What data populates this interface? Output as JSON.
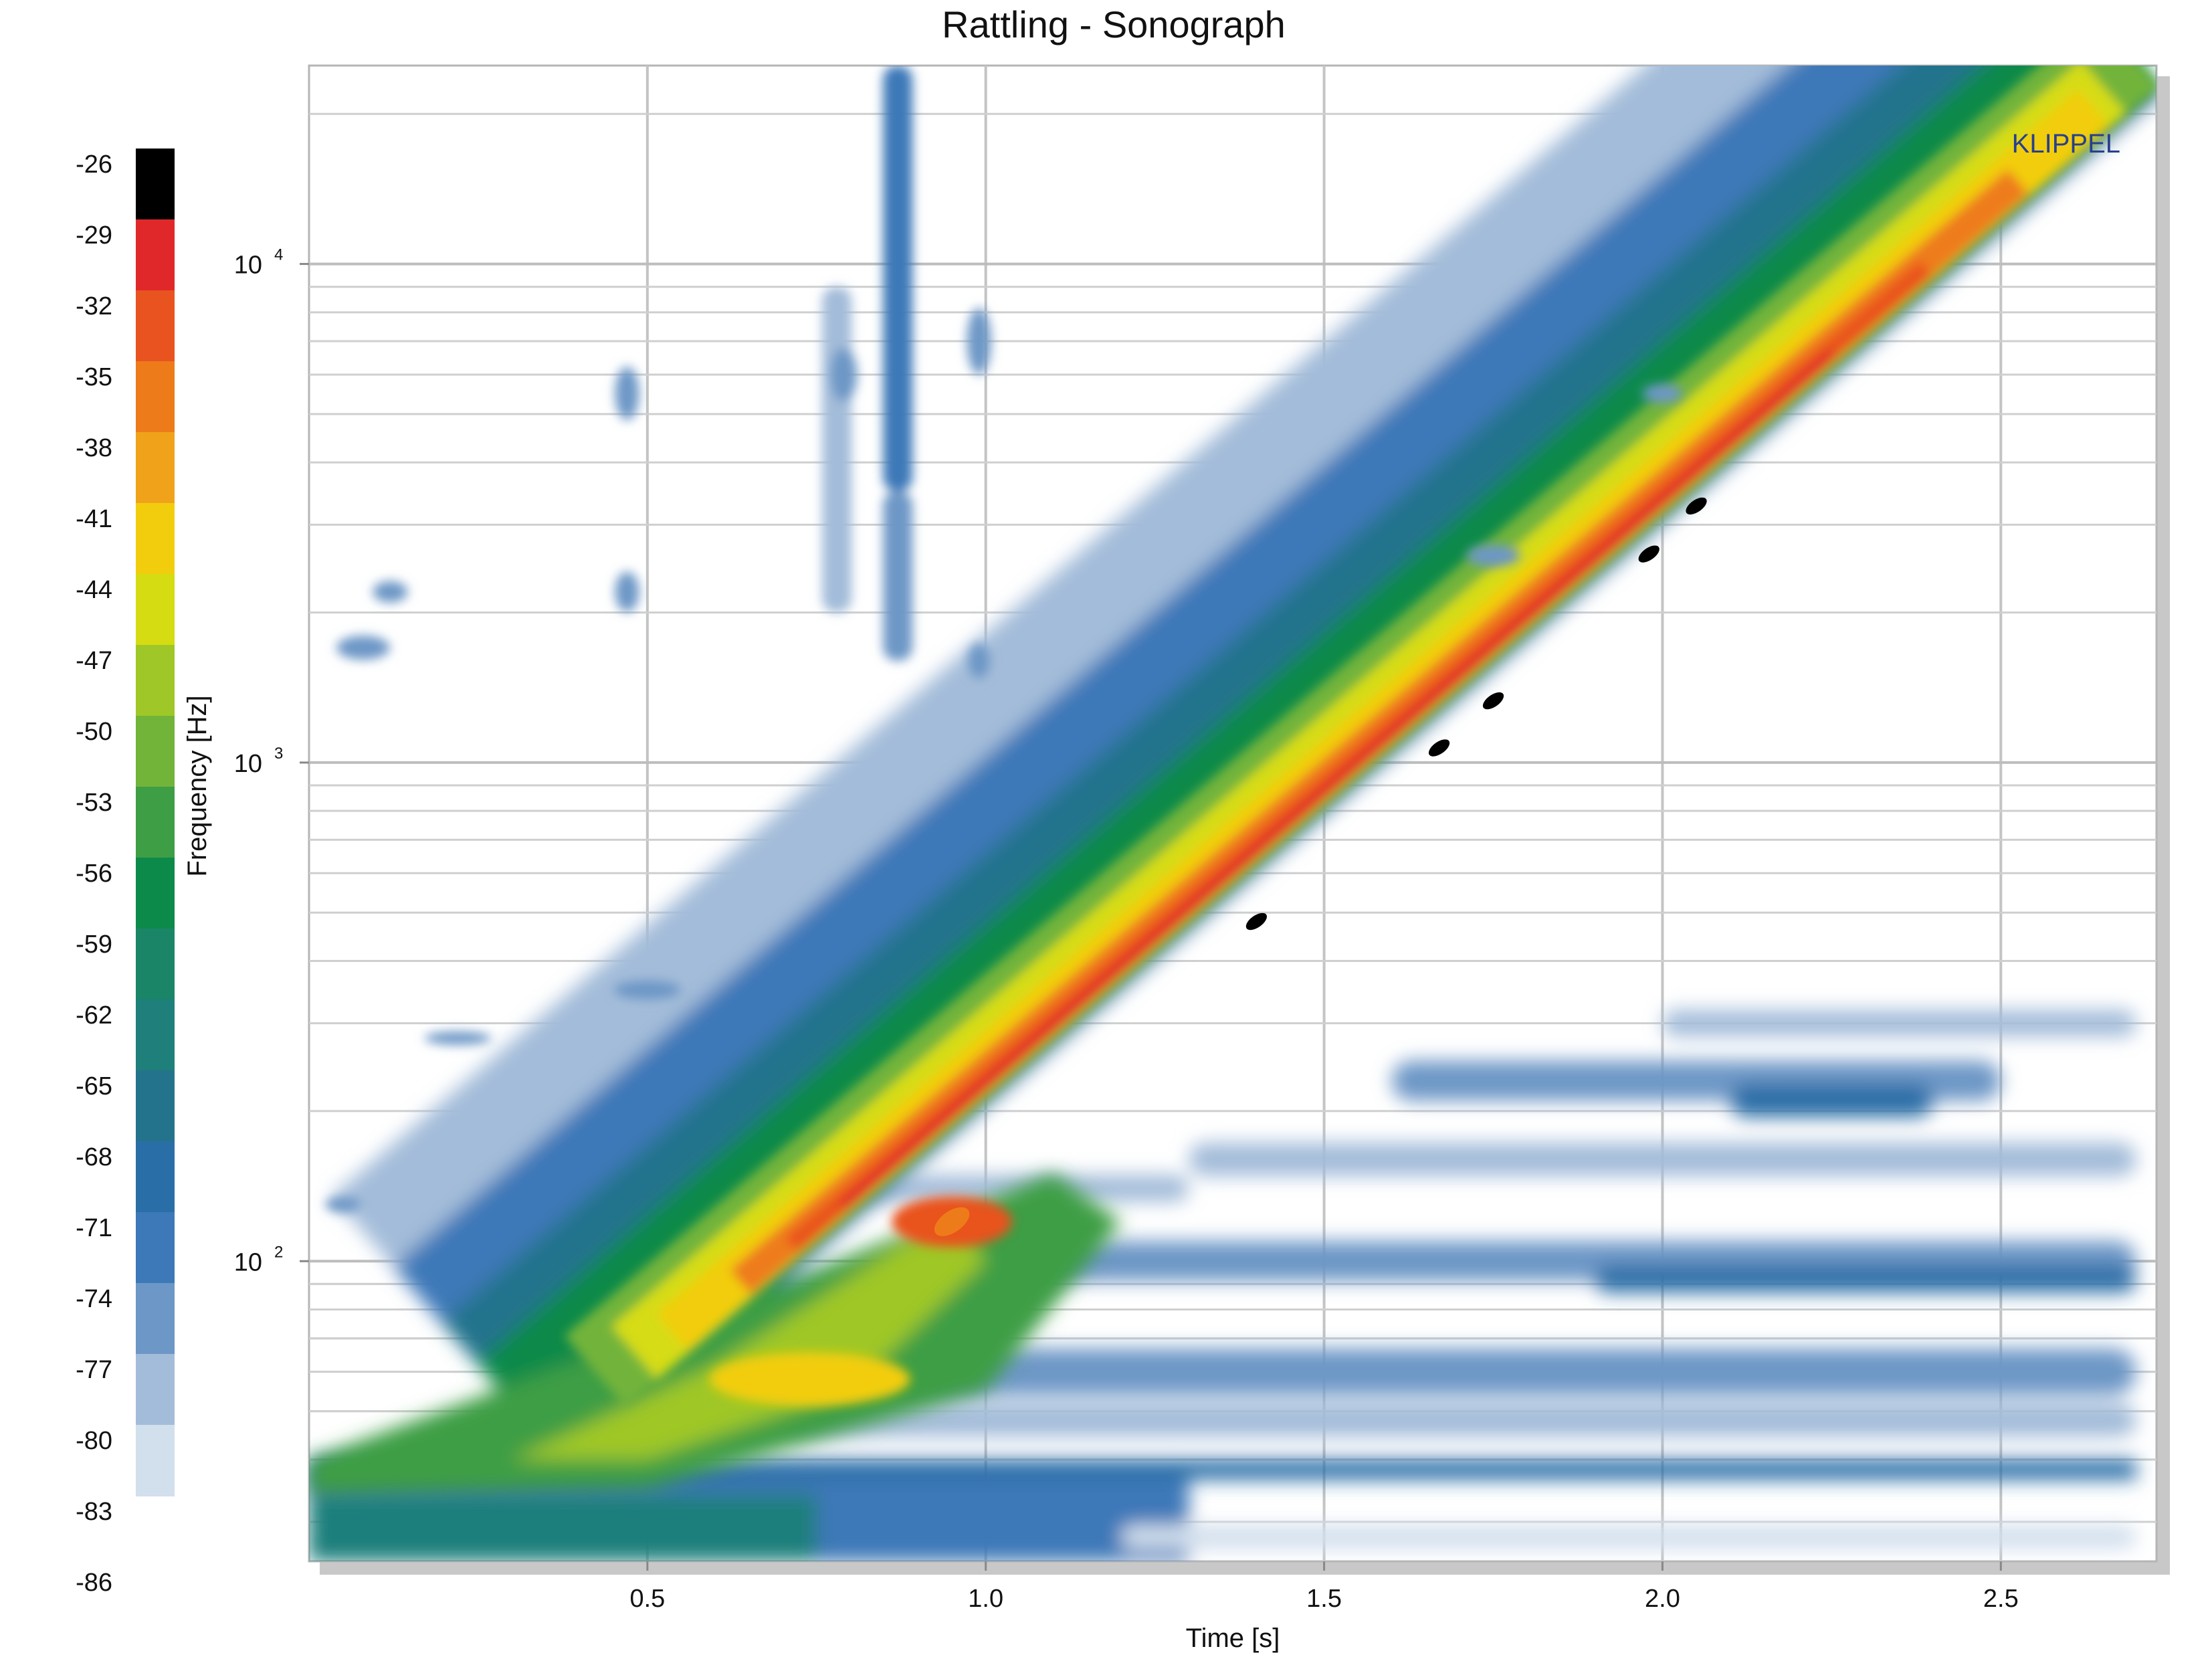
{
  "chart_data": {
    "type": "heatmap",
    "title": "Rattling - Sonograph",
    "xlabel": "Time [s]",
    "ylabel": "Frequency [Hz]",
    "x_scale": "linear",
    "y_scale": "log",
    "xlim": [
      0.0,
      2.73
    ],
    "ylim": [
      25,
      25000
    ],
    "grid": true,
    "x_ticks": [
      0.5,
      1.0,
      1.5,
      2.0,
      2.5
    ],
    "x_tick_labels": [
      "0.5",
      "1.0",
      "1.5",
      "2.0",
      "2.5"
    ],
    "y_ticks": [
      100,
      1000,
      10000
    ],
    "y_tick_labels": [
      {
        "base": "10",
        "exp": "2"
      },
      {
        "base": "10",
        "exp": "3"
      },
      {
        "base": "10",
        "exp": "4"
      }
    ],
    "colorbar": {
      "position": "left",
      "ticks": [
        "-26",
        "-29",
        "-32",
        "-35",
        "-38",
        "-41",
        "-44",
        "-47",
        "-50",
        "-53",
        "-56",
        "-59",
        "-62",
        "-65",
        "-68",
        "-71",
        "-74",
        "-77",
        "-80",
        "-83",
        "-86"
      ],
      "colors": [
        "#000000",
        "#e0282a",
        "#e9531f",
        "#ee7b1a",
        "#f0a31a",
        "#f2cd0e",
        "#d6dc12",
        "#9fc727",
        "#72b43a",
        "#3e9e45",
        "#0c8a4a",
        "#1a8567",
        "#1e7f7b",
        "#24738c",
        "#2a6ea7",
        "#3d78b8",
        "#6d97c6",
        "#a3bcd9",
        "#d2dfed"
      ]
    },
    "sweep": {
      "description_label": "",
      "start": [
        0.37,
        40
      ],
      "end": [
        2.73,
        23000
      ]
    },
    "hotspots_db": [
      {
        "t": 1.4,
        "f": 480,
        "level": -26
      },
      {
        "t": 1.67,
        "f": 1070,
        "level": -26
      },
      {
        "t": 1.75,
        "f": 1330,
        "level": -26
      },
      {
        "t": 1.98,
        "f": 2620,
        "level": -26
      },
      {
        "t": 2.05,
        "f": 3270,
        "level": -26
      },
      {
        "t": 0.95,
        "f": 120,
        "level": -35
      },
      {
        "t": 0.73,
        "f": 58,
        "level": -41
      }
    ],
    "rattle_bursts": [
      {
        "t": 0.87,
        "f_low": 3500,
        "f_high": 25000,
        "level": -71
      },
      {
        "t": 0.87,
        "f_low": 1600,
        "f_high": 3500,
        "level": -74
      },
      {
        "t": 0.78,
        "f_low": 2000,
        "f_high": 9000,
        "level": -77
      }
    ]
  },
  "watermark": "KLIPPEL"
}
